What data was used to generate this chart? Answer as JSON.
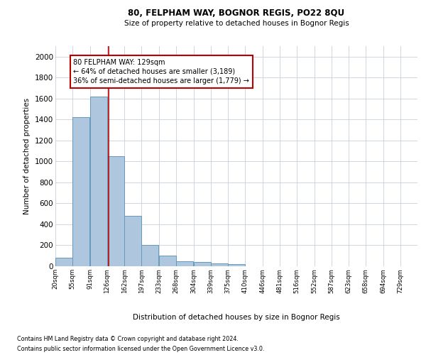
{
  "title1": "80, FELPHAM WAY, BOGNOR REGIS, PO22 8QU",
  "title2": "Size of property relative to detached houses in Bognor Regis",
  "xlabel": "Distribution of detached houses by size in Bognor Regis",
  "ylabel": "Number of detached properties",
  "footnote1": "Contains HM Land Registry data © Crown copyright and database right 2024.",
  "footnote2": "Contains public sector information licensed under the Open Government Licence v3.0.",
  "property_size": 129,
  "annotation_text": "80 FELPHAM WAY: 129sqm\n← 64% of detached houses are smaller (3,189)\n36% of semi-detached houses are larger (1,779) →",
  "bar_left_edges": [
    20,
    55,
    91,
    126,
    162,
    197,
    233,
    268,
    304,
    339,
    375,
    410,
    446,
    481,
    516,
    552,
    587,
    623,
    658,
    694
  ],
  "bar_heights": [
    80,
    1420,
    1620,
    1050,
    480,
    205,
    105,
    50,
    40,
    25,
    20,
    0,
    0,
    0,
    0,
    0,
    0,
    0,
    0,
    0
  ],
  "bin_width": 35,
  "bar_color": "#aec6de",
  "bar_edge_color": "#6699bb",
  "red_line_color": "#bb0000",
  "annotation_box_color": "#bb0000",
  "ylim": [
    0,
    2100
  ],
  "yticks": [
    0,
    200,
    400,
    600,
    800,
    1000,
    1200,
    1400,
    1600,
    1800,
    2000
  ],
  "tick_labels": [
    "20sqm",
    "55sqm",
    "91sqm",
    "126sqm",
    "162sqm",
    "197sqm",
    "233sqm",
    "268sqm",
    "304sqm",
    "339sqm",
    "375sqm",
    "410sqm",
    "446sqm",
    "481sqm",
    "516sqm",
    "552sqm",
    "587sqm",
    "623sqm",
    "658sqm",
    "694sqm",
    "729sqm"
  ],
  "background_color": "#ffffff",
  "grid_color": "#c8d0dc"
}
